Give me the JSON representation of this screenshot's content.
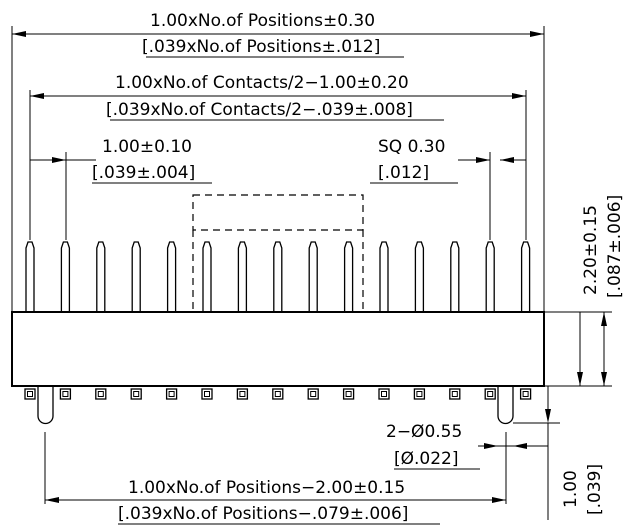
{
  "dimensions": {
    "overall_width": {
      "line1": "1.00xNo.of Positions±0.30",
      "line2": "[.039xNo.of Positions±.012]"
    },
    "contacts_span": {
      "line1": "1.00xNo.of Contacts/2−1.00±0.20",
      "line2": "[.039xNo.of Contacts/2−.039±.008]"
    },
    "pitch": {
      "line1": "1.00±0.10",
      "line2": "[.039±.004]"
    },
    "pin_square": {
      "line1": "SQ 0.30",
      "line2": "[.012]"
    },
    "pin_height": {
      "line1": "2.20±0.15",
      "line2": "[.087±.006]"
    },
    "peg_diameter": {
      "line1": "2−Ø0.55",
      "line2": "[Ø.022]"
    },
    "peg_length": {
      "line1": "1.00",
      "line2": "[.039]"
    },
    "peg_spacing": {
      "line1": "1.00xNo.of Positions−2.00±0.15",
      "line2": "[.039xNo.of Positions−.079±.006]"
    }
  },
  "pins": {
    "count": 15
  },
  "pads": {
    "count": 15
  }
}
